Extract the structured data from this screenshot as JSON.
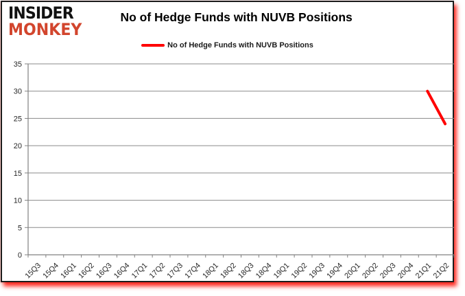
{
  "brand": {
    "line1": "INSIDER",
    "line2": "MONKEY",
    "color_line1": "#121212",
    "color_line2": "#d2452d"
  },
  "header": {
    "title": "No of Hedge Funds with NUVB Positions"
  },
  "legend": {
    "label": "No of Hedge Funds with NUVB Positions",
    "line_color": "#ff0000"
  },
  "chart_data": {
    "type": "line",
    "title": "No of Hedge Funds with NUVB Positions",
    "categories": [
      "15Q3",
      "15Q4",
      "16Q1",
      "16Q2",
      "16Q3",
      "16Q4",
      "17Q1",
      "17Q2",
      "17Q3",
      "17Q4",
      "18Q1",
      "18Q2",
      "18Q3",
      "18Q4",
      "19Q1",
      "19Q2",
      "19Q3",
      "19Q4",
      "20Q1",
      "20Q2",
      "20Q3",
      "20Q4",
      "21Q1",
      "21Q2"
    ],
    "series": [
      {
        "name": "No of Hedge Funds with NUVB Positions",
        "color": "#ff0000",
        "values": [
          null,
          null,
          null,
          null,
          null,
          null,
          null,
          null,
          null,
          null,
          null,
          null,
          null,
          null,
          null,
          null,
          null,
          null,
          null,
          null,
          null,
          null,
          30,
          24
        ]
      }
    ],
    "ylim": [
      0,
      35
    ],
    "ytick_step": 5,
    "grid": true,
    "legend_position": "top-center",
    "axis_color": "#808080",
    "grid_color": "#8a8a8a",
    "xlabel": "",
    "ylabel": "",
    "x_label_rotation": -45
  }
}
